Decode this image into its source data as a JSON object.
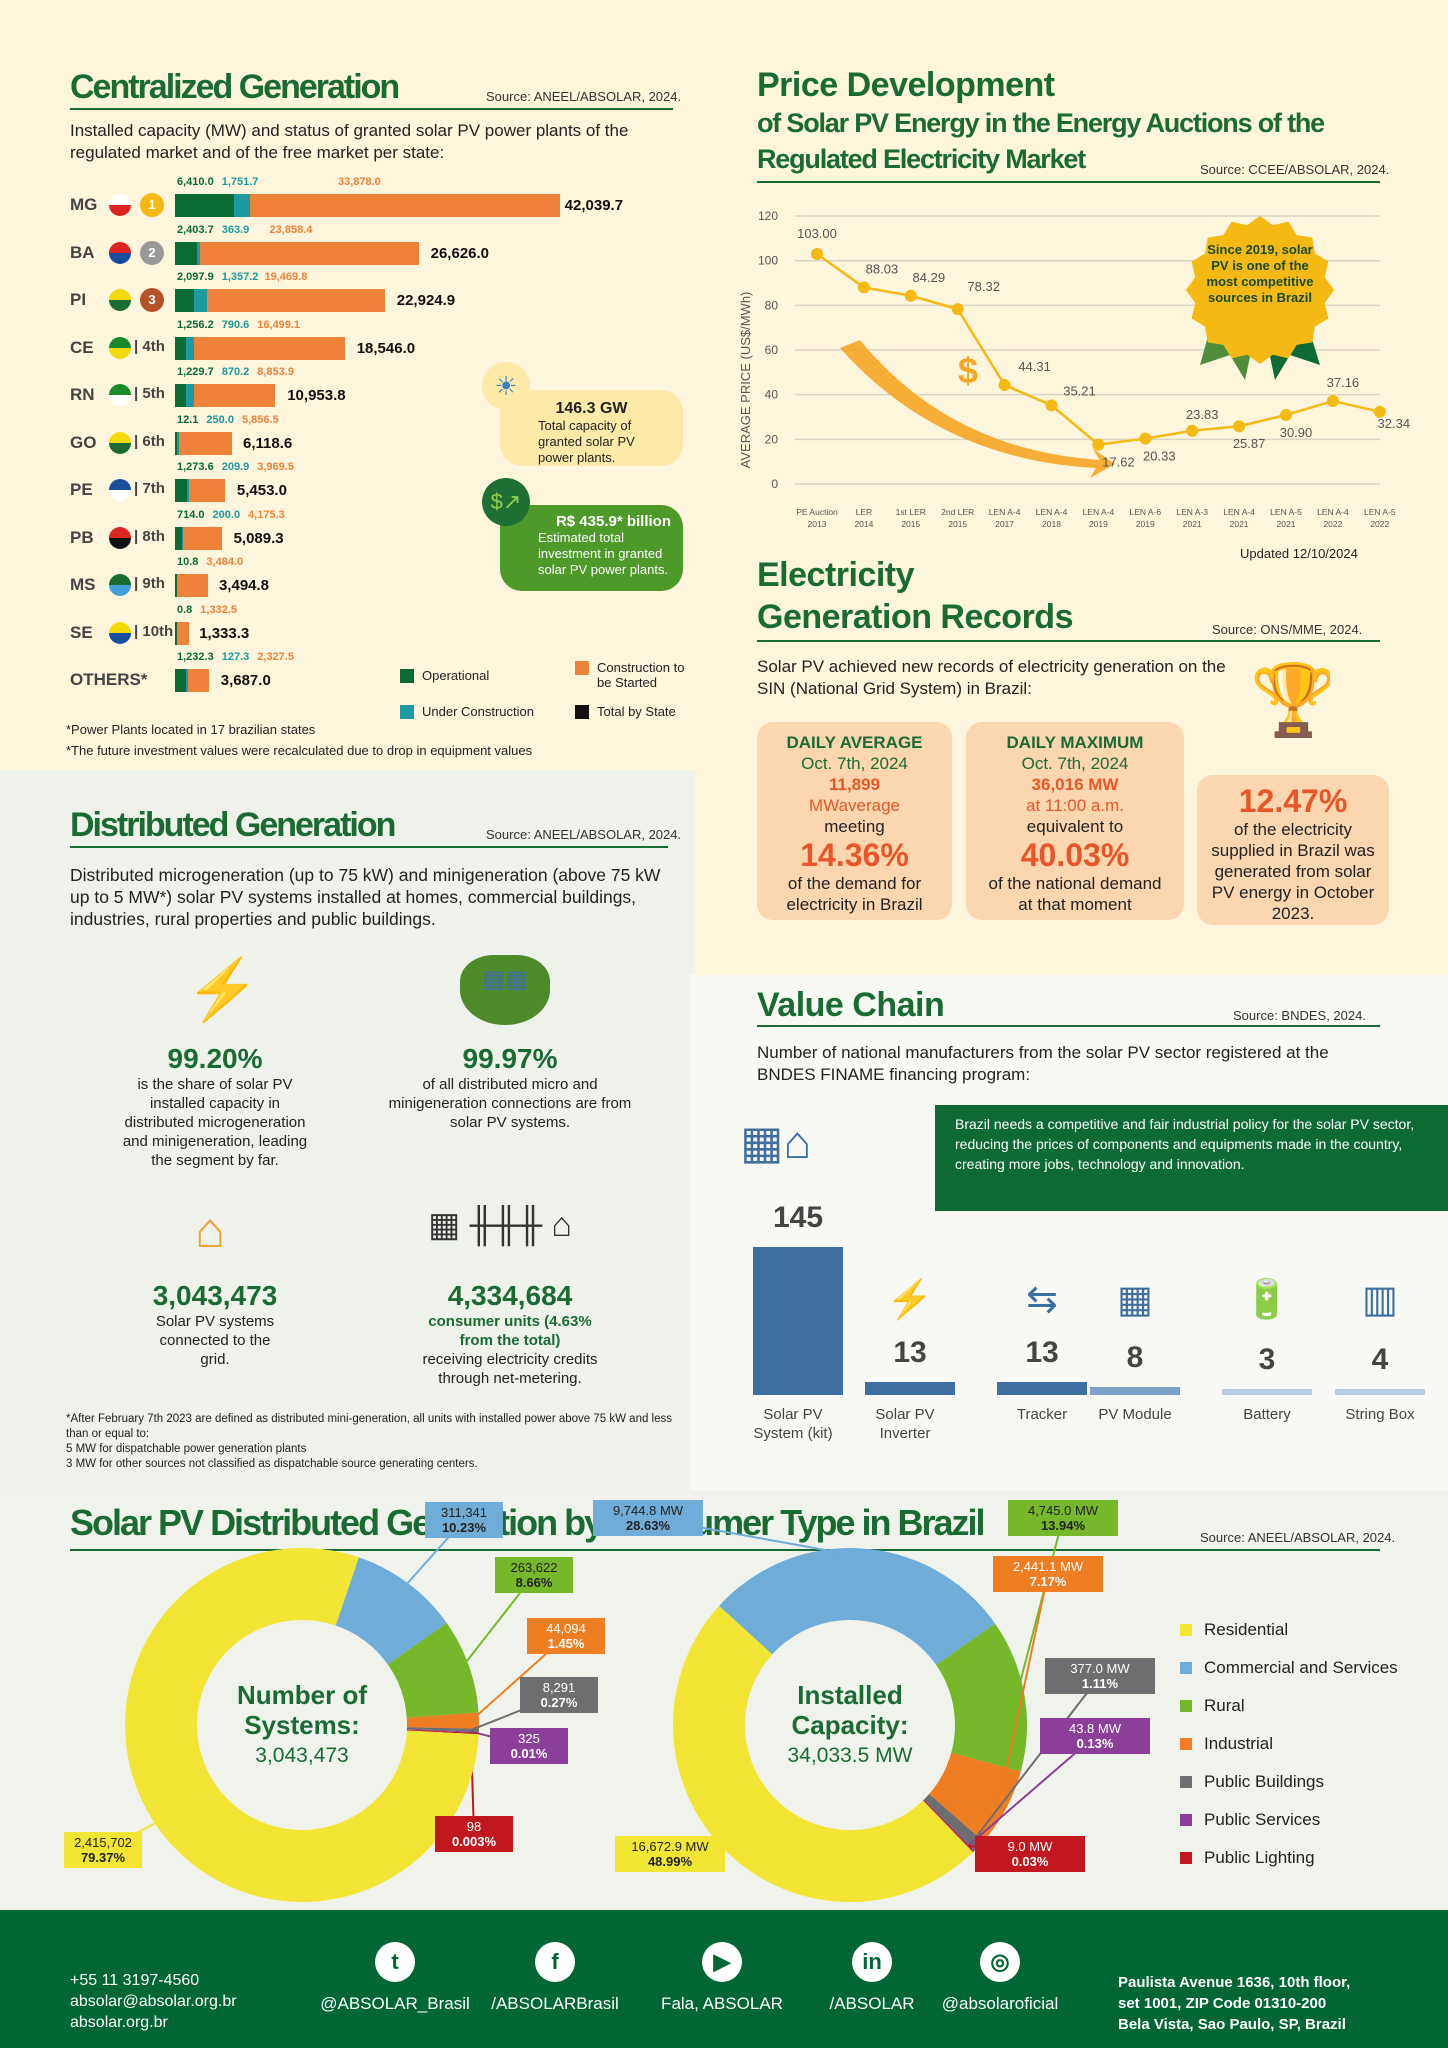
{
  "colors": {
    "operational": "#0b6b35",
    "under_construction": "#1b9aa0",
    "construction_to_start": "#f0813a",
    "total": "#111111",
    "green_title": "#1a6b33",
    "residential": "#f2e534",
    "commercial": "#6fadd8",
    "rural": "#76b82a",
    "industrial": "#ef7d22",
    "public_buildings": "#6d6e70",
    "public_services": "#8b3f98",
    "public_lighting": "#c1171f",
    "footer": "#006633"
  },
  "centralized": {
    "title": "Centralized Generation",
    "source": "Source: ANEEL/ABSOLAR, 2024.",
    "description": "Installed capacity (MW) and status of granted solar PV power plants of the regulated market and of the free market per state:",
    "rows": [
      {
        "state": "MG",
        "rank": "1",
        "medal": "gold",
        "operational": 6410.0,
        "under_construction": 1751.7,
        "to_start": 33878.0,
        "op_label": "6,410.0",
        "uc_label": "1,751.7",
        "ts_label": "33,878.0",
        "total": "42,039.7"
      },
      {
        "state": "BA",
        "rank": "2",
        "medal": "silver",
        "operational": 2403.7,
        "under_construction": 363.9,
        "to_start": 23858.4,
        "op_label": "2,403.7",
        "uc_label": "363.9",
        "ts_label": "23,858.4",
        "total": "26,626.0"
      },
      {
        "state": "PI",
        "rank": "3",
        "medal": "bronze",
        "operational": 2097.9,
        "under_construction": 1357.2,
        "to_start": 19469.8,
        "op_label": "2,097.9",
        "uc_label": "1,357.2",
        "ts_label": "19,469.8",
        "total": "22,924.9"
      },
      {
        "state": "CE",
        "rank": "| 4th",
        "operational": 1256.2,
        "under_construction": 790.6,
        "to_start": 16499.1,
        "op_label": "1,256.2",
        "uc_label": "790.6",
        "ts_label": "16,499.1",
        "total": "18,546.0"
      },
      {
        "state": "RN",
        "rank": "| 5th",
        "operational": 1229.7,
        "under_construction": 870.2,
        "to_start": 8853.9,
        "op_label": "1,229.7",
        "uc_label": "870.2",
        "ts_label": "8,853.9",
        "total": "10,953.8"
      },
      {
        "state": "GO",
        "rank": "| 6th",
        "operational": 12.1,
        "under_construction": 250.0,
        "to_start": 5856.5,
        "op_label": "12.1",
        "uc_label": "250.0",
        "ts_label": "5,856.5",
        "total": "6,118.6"
      },
      {
        "state": "PE",
        "rank": "| 7th",
        "operational": 1273.6,
        "under_construction": 209.9,
        "to_start": 3969.5,
        "op_label": "1,273.6",
        "uc_label": "209.9",
        "ts_label": "3,969.5",
        "total": "5,453.0"
      },
      {
        "state": "PB",
        "rank": "| 8th",
        "operational": 714.0,
        "under_construction": 200.0,
        "to_start": 4175.3,
        "op_label": "714.0",
        "uc_label": "200.0",
        "ts_label": "4,175.3",
        "total": "5,089.3"
      },
      {
        "state": "MS",
        "rank": "| 9th",
        "operational": 10.8,
        "under_construction": 0,
        "to_start": 3484.0,
        "op_label": "10.8",
        "uc_label": "",
        "ts_label": "3,484.0",
        "total": "3,494.8"
      },
      {
        "state": "SE",
        "rank": "| 10th",
        "operational": 0.8,
        "under_construction": 0,
        "to_start": 1332.5,
        "op_label": "0.8",
        "uc_label": "",
        "ts_label": "1,332.5",
        "total": "1,333.3"
      },
      {
        "state": "OTHERS*",
        "rank": "",
        "operational": 1232.3,
        "under_construction": 127.3,
        "to_start": 2327.5,
        "op_label": "1,232.3",
        "uc_label": "127.3",
        "ts_label": "2,327.5",
        "total": "3,687.0"
      }
    ],
    "legend": {
      "operational": "Operational",
      "under_construction": "Under Construction",
      "to_start": "Construction to be Started",
      "total": "Total by State"
    },
    "capacity_box": {
      "value": "146.3 GW",
      "text": "Total capacity of granted solar PV power plants."
    },
    "investment_box": {
      "value": "R$ 435.9* billion",
      "text": "Estimated total investment in granted solar PV power plants."
    },
    "footnotes": [
      "*Power Plants located in 17 brazilian states",
      "*The future investment values were recalculated due to drop in equipment values"
    ]
  },
  "price": {
    "title1": "Price Development",
    "title2": "of Solar PV Energy in the Energy Auctions of the",
    "title3": "Regulated Electricity Market",
    "source": "Source: CCEE/ABSOLAR, 2024.",
    "badge": "Since 2019, solar PV is one of the most competitive sources in Brazil",
    "updated": "Updated 12/10/2024",
    "chart_data": {
      "type": "line",
      "ylabel": "AVERAGE PRICE (US$/MWh)",
      "ylim": [
        0,
        120
      ],
      "yticks": [
        0,
        20,
        40,
        60,
        80,
        100,
        120
      ],
      "grid": true,
      "categories": [
        [
          "PE Auction",
          "2013"
        ],
        [
          "LER",
          "2014"
        ],
        [
          "1st LER",
          "2015"
        ],
        [
          "2nd LER",
          "2015"
        ],
        [
          "LEN A-4",
          "2017"
        ],
        [
          "LEN A-4",
          "2018"
        ],
        [
          "LEN A-4",
          "2019"
        ],
        [
          "LEN A-6",
          "2019"
        ],
        [
          "LEN A-3",
          "2021"
        ],
        [
          "LEN A-4",
          "2021"
        ],
        [
          "LEN A-5",
          "2021"
        ],
        [
          "LEN A-4",
          "2022"
        ],
        [
          "LEN A-5",
          "2022"
        ]
      ],
      "values": [
        103.0,
        88.03,
        84.29,
        78.32,
        44.31,
        35.21,
        17.62,
        20.33,
        23.83,
        25.87,
        30.9,
        37.16,
        32.34
      ],
      "labels": [
        "103.00",
        "88.03",
        "84.29",
        "78.32",
        "44.31",
        "35.21",
        "17.62",
        "20.33",
        "23.83",
        "25.87",
        "30.90",
        "37.16",
        "32.34"
      ],
      "color": "#f5b914"
    }
  },
  "records": {
    "title1": "Electricity",
    "title2": "Generation Records",
    "source": "Source: ONS/MME, 2024.",
    "description": "Solar PV achieved new records of electricity generation on the SIN (National Grid System) in Brazil:",
    "daily_average": {
      "head": "DAILY AVERAGE",
      "date": "Oct. 7th, 2024",
      "value": "11,899",
      "unit": "MWaverage",
      "mid": "meeting",
      "pct": "14.36%",
      "tail": "of the demand for electricity in Brazil"
    },
    "daily_max": {
      "head": "DAILY MAXIMUM",
      "date": "Oct. 7th, 2024",
      "value": "36,016 MW",
      "unit": "at 11:00 a.m.",
      "mid": "equivalent to",
      "pct": "40.03%",
      "tail": "of the national demand at that moment"
    },
    "share": {
      "pct": "12.47%",
      "tail": "of the electricity supplied in Brazil was generated from solar PV energy in October 2023."
    }
  },
  "value_chain": {
    "title": "Value Chain",
    "source": "Source: BNDES, 2024.",
    "description": "Number of national manufacturers from the solar PV sector registered at the BNDES FINAME financing program:",
    "note": "Brazil needs a competitive and fair industrial policy for the solar PV sector, reducing the prices of components and equipments made in the country, creating more jobs, technology and innovation.",
    "chart_data": {
      "type": "bar",
      "categories": [
        "Solar PV System (kit)",
        "Solar PV Inverter",
        "Tracker",
        "PV Module",
        "Battery",
        "String Box"
      ],
      "values": [
        145,
        13,
        13,
        8,
        3,
        4
      ],
      "labels": [
        "145",
        "13",
        "13",
        "8",
        "3",
        "4"
      ]
    }
  },
  "distributed": {
    "title": "Distributed Generation",
    "source": "Source: ANEEL/ABSOLAR, 2024.",
    "description": "Distributed microgeneration (up to 75 kW) and minigeneration (above 75 kW up to 5 MW*) solar PV systems installed at homes, commercial buildings, industries, rural properties and public buildings.",
    "stats": [
      {
        "value": "99.20%",
        "text": "is the share of solar PV installed capacity in distributed microgeneration and minigeneration, leading the segment by far.",
        "icon": "lightning-icon"
      },
      {
        "value": "99.97%",
        "text": "of all distributed micro and minigeneration connections are from solar PV systems.",
        "icon": "solar-farm-icon"
      },
      {
        "value": "3,043,473",
        "text": "Solar PV systems connected to the grid.",
        "icon": "solar-house-icon"
      },
      {
        "value": "4,334,684",
        "sub": "consumer units (4.63% from the total)",
        "text": "receiving electricity credits through net-metering.",
        "icon": "grid-icon"
      }
    ],
    "footnote": [
      "*After February 7th 2023 are defined as distributed mini-generation, all units with installed power above 75 kW and less than or equal to:",
      "5 MW for dispatchable power generation plants",
      "3 MW for other sources not classified as dispatchable source generating centers."
    ]
  },
  "consumer": {
    "title": "Solar PV Distributed Generation by Consumer Type in Brazil",
    "source": "Source: ANEEL/ABSOLAR, 2024.",
    "legend": [
      "Residential",
      "Commercial and Services",
      "Rural",
      "Industrial",
      "Public Buildings",
      "Public Services",
      "Public Lighting"
    ],
    "chart_data": [
      {
        "type": "pie",
        "title": "Number of Systems:",
        "total": "3,043,473",
        "series": [
          {
            "name": "Commercial and Services",
            "value": 311341,
            "label": "311,341",
            "pct": "10.23%"
          },
          {
            "name": "Rural",
            "value": 263622,
            "label": "263,622",
            "pct": "8.66%"
          },
          {
            "name": "Industrial",
            "value": 44094,
            "label": "44,094",
            "pct": "1.45%"
          },
          {
            "name": "Public Buildings",
            "value": 8291,
            "label": "8,291",
            "pct": "0.27%"
          },
          {
            "name": "Public Services",
            "value": 325,
            "label": "325",
            "pct": "0.01%"
          },
          {
            "name": "Public Lighting",
            "value": 98,
            "label": "98",
            "pct": "0.003%"
          },
          {
            "name": "Residential",
            "value": 2415702,
            "label": "2,415,702",
            "pct": "79.37%"
          }
        ]
      },
      {
        "type": "pie",
        "title": "Installed Capacity:",
        "total": "34,033.5 MW",
        "series": [
          {
            "name": "Commercial and Services",
            "value": 9744.8,
            "label": "9,744.8 MW",
            "pct": "28.63%"
          },
          {
            "name": "Rural",
            "value": 4745.0,
            "label": "4,745.0 MW",
            "pct": "13.94%"
          },
          {
            "name": "Industrial",
            "value": 2441.1,
            "label": "2,441.1 MW",
            "pct": "7.17%"
          },
          {
            "name": "Public Buildings",
            "value": 377.0,
            "label": "377.0 MW",
            "pct": "1.11%"
          },
          {
            "name": "Public Services",
            "value": 43.8,
            "label": "43.8 MW",
            "pct": "0.13%"
          },
          {
            "name": "Public Lighting",
            "value": 9.0,
            "label": "9.0 MW",
            "pct": "0.03%"
          },
          {
            "name": "Residential",
            "value": 16672.9,
            "label": "16,672.9 MW",
            "pct": "48.99%"
          }
        ]
      }
    ]
  },
  "footer": {
    "phone": "+55 11 3197-4560",
    "email": "absolar@absolar.org.br",
    "site": "absolar.org.br",
    "social": [
      {
        "icon": "twitter-icon",
        "glyph": "t",
        "label": "@ABSOLAR_Brasil"
      },
      {
        "icon": "facebook-icon",
        "glyph": "f",
        "label": "/ABSOLARBrasil"
      },
      {
        "icon": "youtube-icon",
        "glyph": "▶",
        "label": "Fala, ABSOLAR"
      },
      {
        "icon": "linkedin-icon",
        "glyph": "in",
        "label": "/ABSOLAR"
      },
      {
        "icon": "instagram-icon",
        "glyph": "◎",
        "label": "@absolaroficial"
      }
    ],
    "address": [
      "Paulista Avenue 1636, 10th floor,",
      "set 1001, ZIP Code 01310-200",
      "Bela Vista, Sao Paulo, SP, Brazil"
    ]
  }
}
